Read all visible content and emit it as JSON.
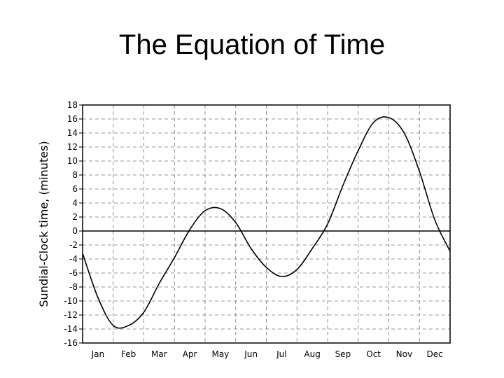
{
  "title": "The Equation of Time",
  "chart_data": {
    "type": "line",
    "title": "The Equation of Time",
    "xlabel": "",
    "ylabel": "Sundial-Clock time, (minutes)",
    "ylim": [
      -16,
      18
    ],
    "yticks": [
      18,
      16,
      14,
      12,
      10,
      8,
      6,
      4,
      2,
      0,
      -2,
      -4,
      -6,
      -8,
      -10,
      -12,
      -14,
      -16
    ],
    "ytick_labels": [
      "18",
      "16",
      "14",
      "12",
      "10",
      "8",
      "6",
      "4",
      "2",
      "0",
      "-2",
      "-4",
      "-6",
      "-8",
      "-10",
      "-12",
      "-14",
      "-16"
    ],
    "categories": [
      "Jan",
      "Feb",
      "Mar",
      "Apr",
      "May",
      "Jun",
      "Jul",
      "Aug",
      "Sep",
      "Oct",
      "Nov",
      "Dec"
    ],
    "grid": true,
    "series": [
      {
        "x": [
          0,
          0.5,
          1.0,
          1.5,
          2.0,
          2.5,
          3.0,
          3.5,
          4.0,
          4.5,
          5.0,
          5.5,
          6.0,
          6.5,
          7.0,
          7.5,
          8.0,
          8.5,
          9.0,
          9.5,
          10.0,
          10.5,
          11.0,
          11.5,
          12.0
        ],
        "y": [
          -3.2,
          -9.5,
          -13.5,
          -13.5,
          -11.6,
          -7.5,
          -3.8,
          0.2,
          2.9,
          3.2,
          1.2,
          -2.5,
          -5.2,
          -6.5,
          -5.5,
          -2.5,
          1.0,
          6.5,
          11.5,
          15.5,
          16.2,
          14.0,
          8.5,
          1.6,
          -2.9
        ]
      }
    ]
  }
}
